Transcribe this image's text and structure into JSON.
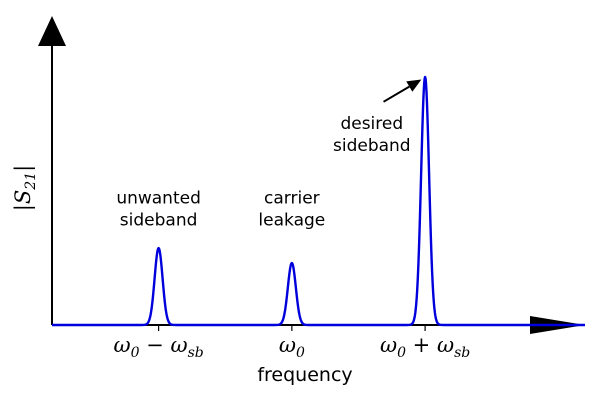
{
  "chart_data": {
    "type": "line",
    "title": "",
    "xlabel": "frequency",
    "ylabel": "|S21|",
    "ylabel_main": "|S",
    "ylabel_sub": "21",
    "ylabel_end": "|",
    "xlim": [
      0,
      1
    ],
    "ylim": [
      0,
      1
    ],
    "grid": false,
    "line_color": "#0000dd",
    "axis_color": "#000000",
    "ticks": [
      {
        "x": 0.2,
        "main": "ω",
        "sub0": "0",
        "op": " − ",
        "var": "ω",
        "sub1": "sb"
      },
      {
        "x": 0.45,
        "main": "ω",
        "sub0": "0",
        "op": "",
        "var": "",
        "sub1": ""
      },
      {
        "x": 0.7,
        "main": "ω",
        "sub0": "0",
        "op": " + ",
        "var": "ω",
        "sub1": "sb"
      }
    ],
    "series": [
      {
        "peaks": [
          {
            "center": 0.2,
            "height": 0.31,
            "width": 0.0075
          },
          {
            "center": 0.45,
            "height": 0.25,
            "width": 0.0075
          },
          {
            "center": 0.7,
            "height": 1.0,
            "width": 0.0075
          }
        ]
      }
    ],
    "annotations": [
      {
        "lines": [
          "unwanted",
          "sideband"
        ],
        "x": 0.2,
        "y": 0.49
      },
      {
        "lines": [
          "carrier",
          "leakage"
        ],
        "x": 0.45,
        "y": 0.49
      },
      {
        "lines": [
          "desired",
          "sideband"
        ],
        "x": 0.6,
        "y": 0.79,
        "arrow_to": [
          0.693,
          0.99
        ],
        "arrow_from": [
          0.622,
          0.9
        ]
      }
    ]
  }
}
